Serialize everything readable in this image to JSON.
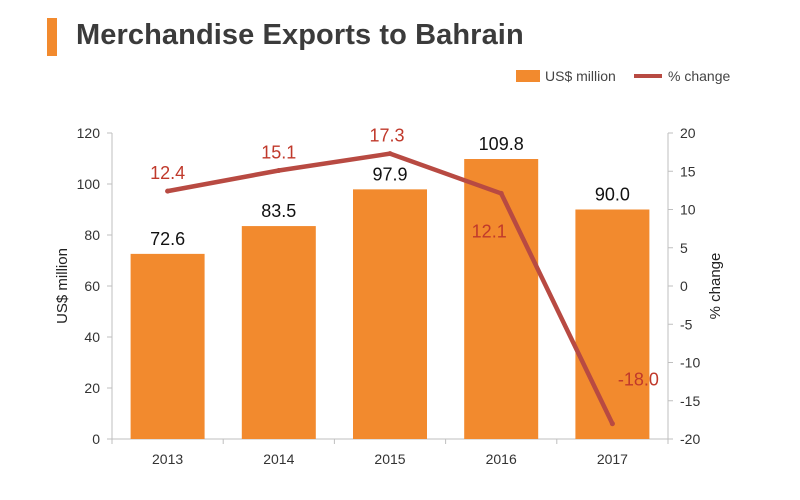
{
  "header": {
    "title": "Merchandise Exports to Bahrain"
  },
  "chart_data": {
    "type": "bar",
    "title": "Merchandise Exports to Bahrain",
    "categories": [
      "2013",
      "2014",
      "2015",
      "2016",
      "2017"
    ],
    "series": [
      {
        "name": "US$ million",
        "type": "bar",
        "axis": "left",
        "values": [
          72.6,
          83.5,
          97.9,
          109.8,
          90.0
        ],
        "labels": [
          "72.6",
          "83.5",
          "97.9",
          "109.8",
          "90.0"
        ],
        "color": "#f28a2e"
      },
      {
        "name": "% change",
        "type": "line",
        "axis": "right",
        "values": [
          12.4,
          15.1,
          17.3,
          12.1,
          -18.0
        ],
        "labels": [
          "12.4",
          "15.1",
          "17.3",
          "12.1",
          "-18.0"
        ],
        "color": "#b84a42"
      }
    ],
    "ylabel": "US$ million",
    "y2label": "% change",
    "ylim": [
      0,
      120
    ],
    "y2lim": [
      -20,
      20
    ],
    "yticks": [
      "0",
      "20",
      "40",
      "60",
      "80",
      "100",
      "120"
    ],
    "y2ticks": [
      "-20",
      "-15",
      "-10",
      "-5",
      "0",
      "5",
      "10",
      "15",
      "20"
    ],
    "legend_position": "top-right",
    "grid": false
  },
  "colors": {
    "accent": "#f28a2e",
    "bar": "#f28a2e",
    "line": "#b84a42",
    "line_label": "#c0392b"
  }
}
